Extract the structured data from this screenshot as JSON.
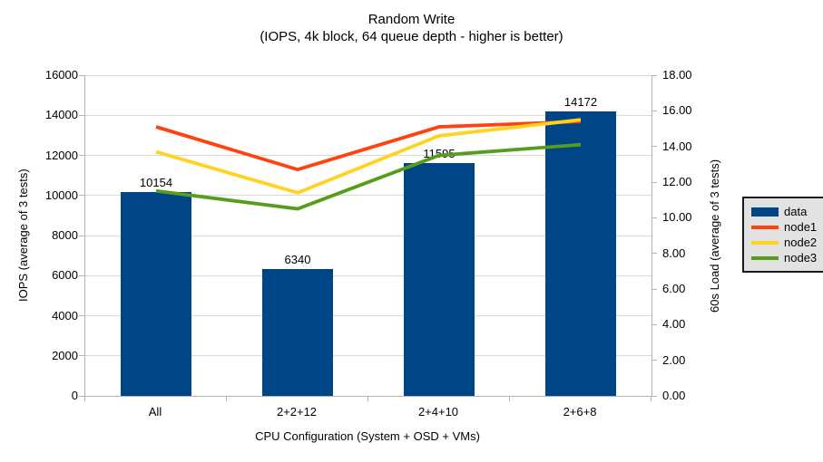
{
  "title": "Random Write",
  "subtitle": "(IOPS, 4k block, 64 queue depth - higher is better)",
  "chart_data": {
    "type": "bar",
    "subtype": "bar-and-line-combo-dual-axis",
    "categories": [
      "All",
      "2+2+12",
      "2+4+10",
      "2+6+8"
    ],
    "bar_series": {
      "name": "data",
      "axis": "left",
      "color": "#004586",
      "values": [
        10154,
        6340,
        11595,
        14172
      ]
    },
    "line_series": [
      {
        "name": "node1",
        "axis": "right",
        "color": "#ff420e",
        "values": [
          15.1,
          12.7,
          15.1,
          15.4
        ]
      },
      {
        "name": "node2",
        "axis": "right",
        "color": "#ffd320",
        "values": [
          13.7,
          11.4,
          14.6,
          15.5
        ]
      },
      {
        "name": "node3",
        "axis": "right",
        "color": "#579d1c",
        "values": [
          11.5,
          10.5,
          13.5,
          14.1
        ]
      }
    ],
    "left_axis": {
      "label": "IOPS (average of 3 tests)",
      "min": 0,
      "max": 16000,
      "step": 2000,
      "decimals": 0
    },
    "right_axis": {
      "label": "60s Load (average of 3 tests)",
      "min": 0,
      "max": 18,
      "step": 2,
      "decimals": 2
    },
    "xlabel": "CPU Configuration (System + OSD + VMs)",
    "grid": "horizontal-major-left-axis",
    "legend": {
      "position": "right",
      "entries": [
        "data",
        "node1",
        "node2",
        "node3"
      ]
    },
    "colors": {
      "background": "#ffffff",
      "gridline": "#d9d9d9",
      "axis": "#b3b3b3",
      "text": "#000000",
      "legend_bg": "#e2e2e2",
      "legend_border": "#1a1a1a"
    }
  }
}
